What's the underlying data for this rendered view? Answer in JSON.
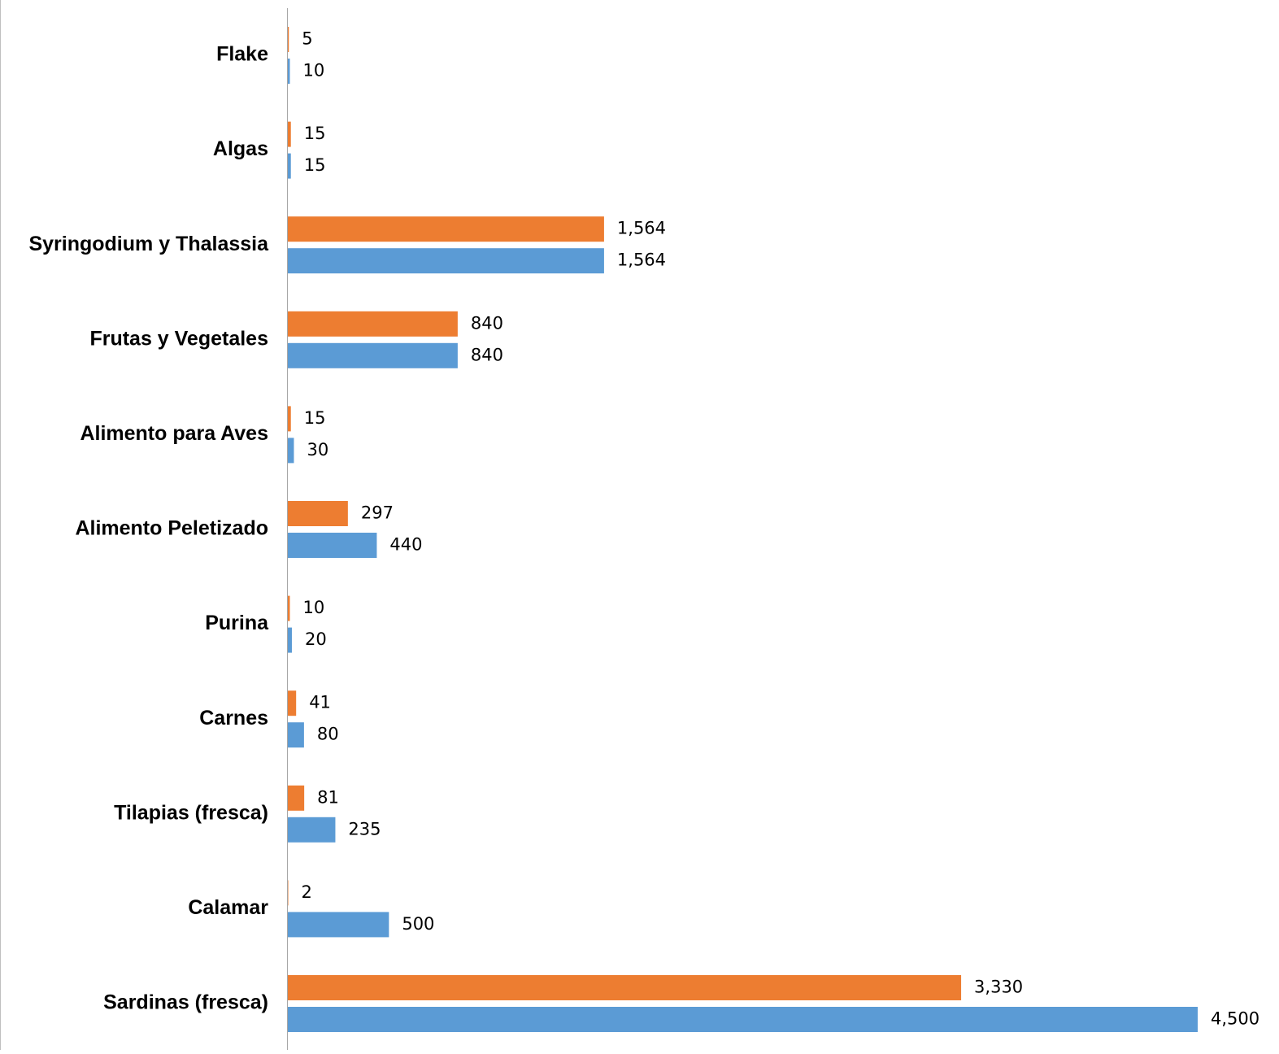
{
  "chart_data": {
    "type": "bar",
    "orientation": "horizontal",
    "categories": [
      "Flake",
      "Algas",
      "Syringodium y Thalassia",
      "Frutas y Vegetales",
      "Alimento para Aves",
      "Alimento  Peletizado",
      "Purina",
      "Carnes",
      "Tilapias (fresca)",
      "Calamar",
      "Sardinas (fresca)"
    ],
    "series": [
      {
        "color": "#ed7d31",
        "values": [
          5,
          15,
          1564,
          840,
          15,
          297,
          10,
          41,
          81,
          2,
          3330
        ],
        "labels": [
          "5",
          "15",
          "1,564",
          "840",
          "15",
          "297",
          "10",
          "41",
          "81",
          "2",
          "3,330"
        ]
      },
      {
        "color": "#5b9bd5",
        "values": [
          10,
          15,
          1564,
          840,
          30,
          440,
          20,
          80,
          235,
          500,
          4500
        ],
        "labels": [
          "10",
          "15",
          "1,564",
          "840",
          "30",
          "440",
          "20",
          "80",
          "235",
          "500",
          "4,500"
        ]
      }
    ],
    "title": "",
    "xlabel": "",
    "ylabel": "",
    "xlim": [
      0,
      4500
    ],
    "grid": false,
    "legend": "none"
  }
}
